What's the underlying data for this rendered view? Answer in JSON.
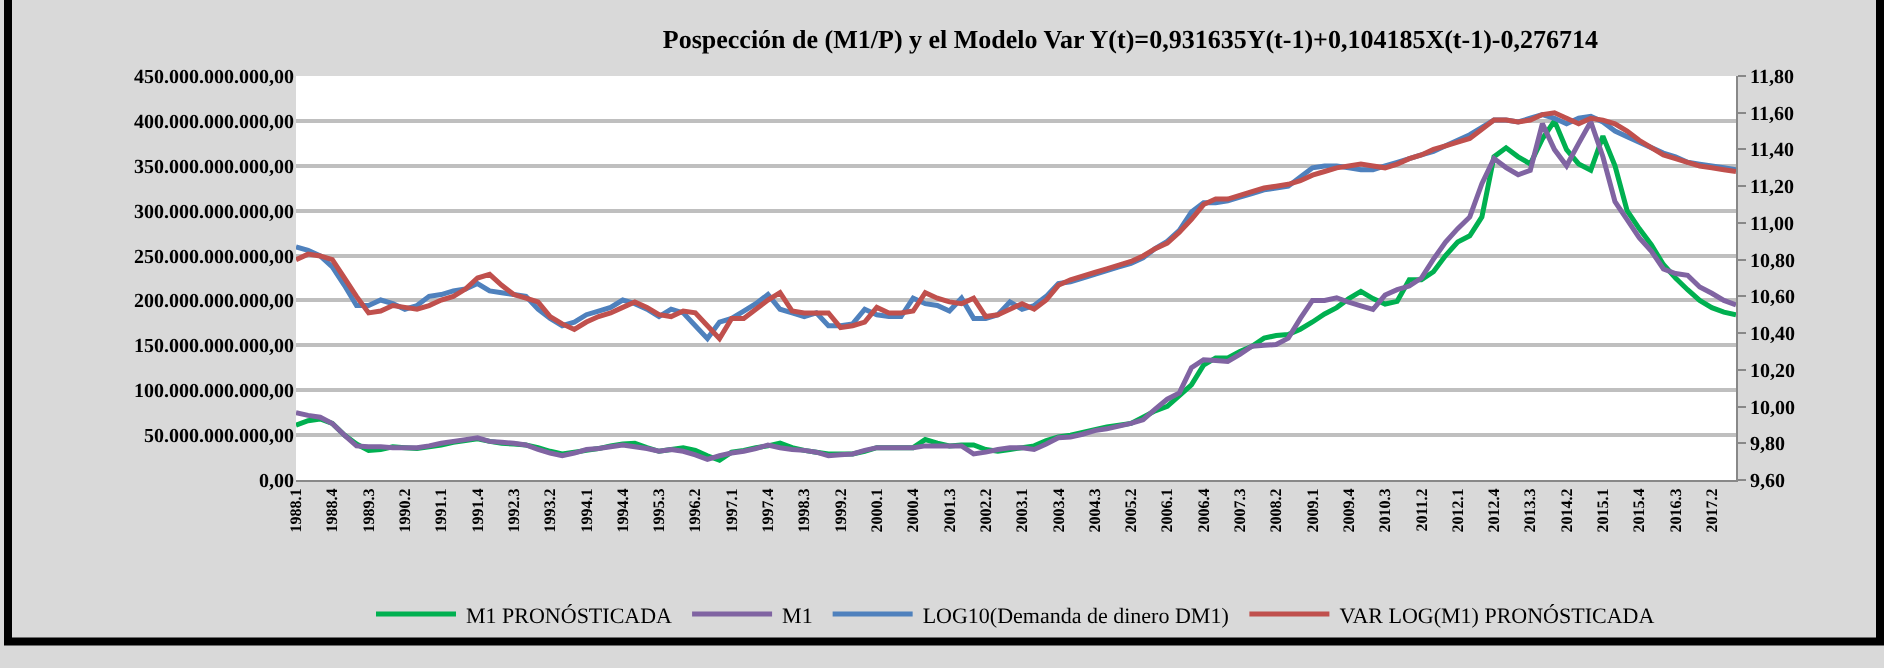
{
  "chart_data": {
    "type": "line",
    "title": "Pospección de (M1/P) y el Modelo Var Y(t)=0,931635Y(t-1)+0,104185X(t-1)-0,276714",
    "categories": [
      "1988.1",
      null,
      null,
      "1988.4",
      null,
      null,
      "1989.3",
      null,
      null,
      "1990.2",
      null,
      null,
      "1991.1",
      null,
      null,
      "1991.4",
      null,
      null,
      "1992.3",
      null,
      null,
      "1993.2",
      null,
      null,
      "1994.1",
      null,
      null,
      "1994.4",
      null,
      null,
      "1995.3",
      null,
      null,
      "1996.2",
      null,
      null,
      "1997.1",
      null,
      null,
      "1997.4",
      null,
      null,
      "1998.3",
      null,
      null,
      "1999.2",
      null,
      null,
      "2000.1",
      null,
      null,
      "2000.4",
      null,
      null,
      "2001.3",
      null,
      null,
      "2002.2",
      null,
      null,
      "2003.1",
      null,
      null,
      "2003.4",
      null,
      null,
      "2004.3",
      null,
      null,
      "2005.2",
      null,
      null,
      "2006.1",
      null,
      null,
      "2006.4",
      null,
      null,
      "2007.3",
      null,
      null,
      "2008.2",
      null,
      null,
      "2009.1",
      null,
      null,
      "2009.4",
      null,
      null,
      "2010.3",
      null,
      null,
      "2011.2",
      null,
      null,
      "2012.1",
      null,
      null,
      "2012.4",
      null,
      null,
      "2013.3",
      null,
      null,
      "2014.2",
      null,
      null,
      "2015.1",
      null,
      null,
      "2015.4",
      null,
      null,
      "2016.3",
      null,
      null,
      "2017.2",
      null,
      null
    ],
    "series": [
      {
        "name": "M1 PRONÓSTICADA",
        "color": "#00b050",
        "values": [
          61000000000.0,
          66000000000.0,
          68000000000.0,
          63000000000.0,
          50000000000.0,
          40000000000.0,
          33000000000.0,
          34000000000.0,
          37000000000.0,
          36000000000.0,
          35000000000.0,
          37000000000.0,
          39000000000.0,
          42000000000.0,
          44000000000.0,
          46000000000.0,
          43000000000.0,
          41000000000.0,
          40000000000.0,
          39000000000.0,
          36000000000.0,
          32000000000.0,
          29000000000.0,
          31000000000.0,
          33000000000.0,
          35000000000.0,
          38000000000.0,
          40000000000.0,
          41000000000.0,
          36000000000.0,
          32000000000.0,
          34000000000.0,
          36000000000.0,
          33000000000.0,
          27000000000.0,
          22000000000.0,
          31000000000.0,
          33000000000.0,
          36000000000.0,
          38000000000.0,
          41000000000.0,
          36000000000.0,
          33000000000.0,
          31000000000.0,
          29000000000.0,
          29000000000.0,
          29000000000.0,
          32000000000.0,
          36000000000.0,
          36000000000.0,
          36000000000.0,
          36000000000.0,
          45000000000.0,
          41000000000.0,
          38000000000.0,
          39000000000.0,
          39000000000.0,
          34000000000.0,
          32000000000.0,
          34000000000.0,
          36000000000.0,
          38000000000.0,
          44000000000.0,
          48000000000.0,
          50000000000.0,
          53000000000.0,
          56000000000.0,
          59000000000.0,
          61000000000.0,
          63000000000.0,
          70000000000.0,
          77000000000.0,
          82000000000.0,
          94000000000.0,
          106000000000.0,
          128000000000.0,
          136000000000.0,
          136000000000.0,
          143000000000.0,
          149000000000.0,
          158000000000.0,
          161000000000.0,
          162000000000.0,
          168000000000.0,
          176000000000.0,
          185000000000.0,
          192000000000.0,
          202000000000.0,
          210000000000.0,
          202000000000.0,
          196000000000.0,
          199000000000.0,
          223000000000.0,
          223000000000.0,
          232000000000.0,
          250000000000.0,
          265000000000.0,
          272000000000.0,
          293000000000.0,
          360000000000.0,
          370000000000.0,
          360000000000.0,
          352000000000.0,
          380000000000.0,
          400000000000.0,
          368000000000.0,
          352000000000.0,
          345000000000.0,
          383000000000.0,
          350000000000.0,
          300000000000.0,
          280000000000.0,
          262000000000.0,
          240000000000.0,
          225000000000.0,
          212000000000.0,
          200000000000.0,
          192000000000.0,
          187000000000.0,
          184000000000.0
        ]
      },
      {
        "name": "M1",
        "color": "#8064a2",
        "values": [
          75000000000.0,
          72000000000.0,
          70000000000.0,
          63000000000.0,
          50000000000.0,
          38000000000.0,
          37000000000.0,
          37000000000.0,
          36000000000.0,
          36000000000.0,
          36000000000.0,
          38000000000.0,
          41000000000.0,
          43000000000.0,
          45000000000.0,
          47000000000.0,
          43000000000.0,
          42000000000.0,
          41000000000.0,
          39000000000.0,
          34000000000.0,
          30000000000.0,
          27000000000.0,
          30000000000.0,
          34000000000.0,
          35000000000.0,
          37000000000.0,
          39000000000.0,
          37000000000.0,
          35000000000.0,
          32000000000.0,
          34000000000.0,
          32000000000.0,
          28000000000.0,
          23000000000.0,
          27000000000.0,
          30000000000.0,
          32000000000.0,
          35000000000.0,
          39000000000.0,
          36000000000.0,
          34000000000.0,
          33000000000.0,
          31000000000.0,
          27000000000.0,
          28000000000.0,
          29000000000.0,
          33000000000.0,
          36000000000.0,
          36000000000.0,
          36000000000.0,
          36000000000.0,
          38000000000.0,
          38000000000.0,
          38000000000.0,
          38000000000.0,
          29000000000.0,
          31000000000.0,
          34000000000.0,
          36000000000.0,
          36000000000.0,
          34000000000.0,
          40000000000.0,
          47000000000.0,
          48000000000.0,
          51000000000.0,
          55000000000.0,
          57000000000.0,
          60000000000.0,
          63000000000.0,
          67000000000.0,
          79000000000.0,
          90000000000.0,
          97000000000.0,
          125000000000.0,
          134000000000.0,
          133000000000.0,
          132000000000.0,
          140000000000.0,
          149000000000.0,
          150000000000.0,
          151000000000.0,
          158000000000.0,
          180000000000.0,
          200000000000.0,
          200000000000.0,
          203000000000.0,
          198000000000.0,
          194000000000.0,
          190000000000.0,
          206000000000.0,
          212000000000.0,
          216000000000.0,
          225000000000.0,
          246000000000.0,
          265000000000.0,
          280000000000.0,
          293000000000.0,
          330000000000.0,
          358000000000.0,
          348000000000.0,
          340000000000.0,
          345000000000.0,
          397000000000.0,
          368000000000.0,
          350000000000.0,
          375000000000.0,
          399000000000.0,
          360000000000.0,
          310000000000.0,
          290000000000.0,
          270000000000.0,
          255000000000.0,
          235000000000.0,
          230000000000.0,
          228000000000.0,
          215000000000.0,
          208000000000.0,
          200000000000.0,
          195000000000.0
        ]
      },
      {
        "name": "LOG10(Demanda de dinero DM1)",
        "color": "#4f81bd",
        "axis": "y2",
        "values": [
          10.87,
          10.85,
          10.82,
          10.76,
          10.66,
          10.55,
          10.55,
          10.58,
          10.56,
          10.53,
          10.55,
          10.6,
          10.61,
          10.63,
          10.64,
          10.67,
          10.63,
          10.62,
          10.61,
          10.6,
          10.53,
          10.48,
          10.44,
          10.46,
          10.5,
          10.52,
          10.54,
          10.58,
          10.56,
          10.53,
          10.49,
          10.53,
          10.51,
          10.44,
          10.37,
          10.46,
          10.48,
          10.52,
          10.56,
          10.61,
          10.53,
          10.51,
          10.49,
          10.51,
          10.44,
          10.44,
          10.45,
          10.53,
          10.5,
          10.49,
          10.49,
          10.59,
          10.56,
          10.55,
          10.52,
          10.59,
          10.48,
          10.48,
          10.5,
          10.57,
          10.53,
          10.55,
          10.6,
          10.67,
          10.68,
          10.7,
          10.72,
          10.74,
          10.76,
          10.78,
          10.81,
          10.86,
          10.9,
          10.96,
          11.06,
          11.11,
          11.11,
          11.12,
          11.14,
          11.16,
          11.18,
          11.19,
          11.2,
          11.25,
          11.3,
          11.31,
          11.31,
          11.3,
          11.29,
          11.29,
          11.31,
          11.33,
          11.35,
          11.37,
          11.39,
          11.42,
          11.45,
          11.48,
          11.52,
          11.56,
          11.56,
          11.55,
          11.57,
          11.59,
          11.57,
          11.54,
          11.57,
          11.58,
          11.55,
          11.5,
          11.47,
          11.44,
          11.41,
          11.38,
          11.36,
          11.33,
          11.32,
          11.31,
          11.3,
          11.29
        ]
      },
      {
        "name": "VAR LOG(M1) PRONÓSTICADA",
        "color": "#c0504d",
        "axis": "y2",
        "values": [
          10.8,
          10.83,
          10.82,
          10.8,
          10.7,
          10.6,
          10.51,
          10.52,
          10.55,
          10.54,
          10.53,
          10.55,
          10.58,
          10.6,
          10.64,
          10.7,
          10.72,
          10.66,
          10.61,
          10.59,
          10.57,
          10.49,
          10.45,
          10.42,
          10.46,
          10.49,
          10.51,
          10.54,
          10.57,
          10.54,
          10.5,
          10.49,
          10.52,
          10.51,
          10.44,
          10.37,
          10.48,
          10.48,
          10.53,
          10.58,
          10.62,
          10.52,
          10.51,
          10.51,
          10.51,
          10.43,
          10.44,
          10.46,
          10.54,
          10.51,
          10.51,
          10.52,
          10.62,
          10.59,
          10.57,
          10.56,
          10.59,
          10.49,
          10.5,
          10.53,
          10.56,
          10.53,
          10.58,
          10.66,
          10.69,
          10.71,
          10.73,
          10.75,
          10.77,
          10.79,
          10.82,
          10.86,
          10.89,
          10.95,
          11.02,
          11.1,
          11.13,
          11.13,
          11.15,
          11.17,
          11.19,
          11.2,
          11.21,
          11.23,
          11.26,
          11.28,
          11.3,
          11.31,
          11.32,
          11.31,
          11.3,
          11.32,
          11.35,
          11.37,
          11.4,
          11.42,
          11.44,
          11.46,
          11.51,
          11.56,
          11.56,
          11.55,
          11.56,
          11.59,
          11.6,
          11.57,
          11.54,
          11.57,
          11.56,
          11.54,
          11.5,
          11.45,
          11.41,
          11.37,
          11.35,
          11.33,
          11.31,
          11.3,
          11.29,
          11.28
        ]
      }
    ],
    "ylim": [
      0,
      450000000000
    ],
    "yticks": [
      {
        "value": 0,
        "label": "0,00"
      },
      {
        "value": 50000000000,
        "label": "50.000.000.000,00"
      },
      {
        "value": 100000000000,
        "label": "100.000.000.000,00"
      },
      {
        "value": 150000000000,
        "label": "150.000.000.000,00"
      },
      {
        "value": 200000000000,
        "label": "200.000.000.000,00"
      },
      {
        "value": 250000000000,
        "label": "250.000.000.000,00"
      },
      {
        "value": 300000000000,
        "label": "300.000.000.000,00"
      },
      {
        "value": 350000000000,
        "label": "350.000.000.000,00"
      },
      {
        "value": 400000000000,
        "label": "400.000.000.000,00"
      },
      {
        "value": 450000000000,
        "label": "450.000.000.000,00"
      }
    ],
    "y2lim": [
      9.6,
      11.8
    ],
    "y2ticks": [
      {
        "value": 9.6,
        "label": "9,60"
      },
      {
        "value": 9.8,
        "label": "9,80"
      },
      {
        "value": 10.0,
        "label": "10,00"
      },
      {
        "value": 10.2,
        "label": "10,20"
      },
      {
        "value": 10.4,
        "label": "10,40"
      },
      {
        "value": 10.6,
        "label": "10,60"
      },
      {
        "value": 10.8,
        "label": "10,80"
      },
      {
        "value": 11.0,
        "label": "11,00"
      },
      {
        "value": 11.2,
        "label": "11,20"
      },
      {
        "value": 11.4,
        "label": "11,40"
      },
      {
        "value": 11.6,
        "label": "11,60"
      },
      {
        "value": 11.8,
        "label": "11,80"
      }
    ],
    "grid": "y",
    "legend": "bottom",
    "marker": "none",
    "line_style": "solid"
  }
}
